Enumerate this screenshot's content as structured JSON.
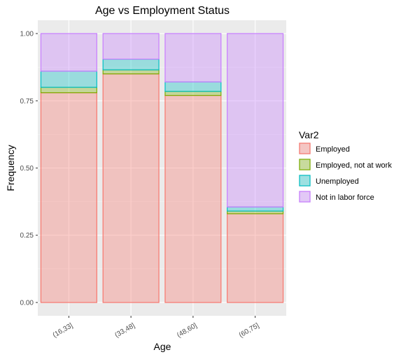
{
  "chart_data": {
    "type": "bar",
    "stacked": true,
    "title": "Age vs Employment Status",
    "xlabel": "Age",
    "ylabel": "Frequency",
    "categories": [
      "(16,33]",
      "(33,48]",
      "(48,60]",
      "(60,75]"
    ],
    "ylim": [
      0,
      1
    ],
    "yticks": [
      0,
      0.25,
      0.5,
      0.75,
      1
    ],
    "ytick_labels": [
      "0.00",
      "0.25",
      "0.50",
      "0.75",
      "1.00"
    ],
    "grid": true,
    "legend": {
      "title": "Var2",
      "placement": "right"
    },
    "series": [
      {
        "name": "Employed",
        "values": [
          0.78,
          0.85,
          0.77,
          0.33
        ],
        "stroke": "#f8766d",
        "fill": "#f8766d"
      },
      {
        "name": "Employed, not at work",
        "values": [
          0.02,
          0.015,
          0.015,
          0.01
        ],
        "stroke": "#7cae00",
        "fill": "#7cae00"
      },
      {
        "name": "Unemployed",
        "values": [
          0.06,
          0.04,
          0.035,
          0.015
        ],
        "stroke": "#00bfc4",
        "fill": "#00bfc4"
      },
      {
        "name": "Not in labor force",
        "values": [
          0.14,
          0.095,
          0.18,
          0.645
        ],
        "stroke": "#c77cff",
        "fill": "#c77cff"
      }
    ]
  }
}
